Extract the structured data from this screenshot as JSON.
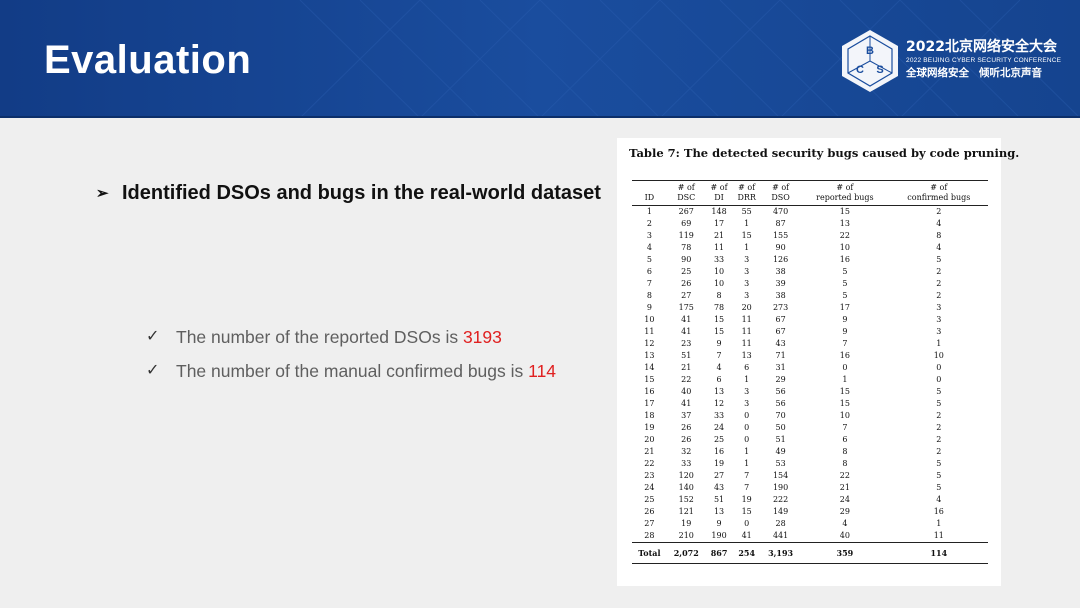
{
  "header": {
    "title": "Evaluation",
    "conference": {
      "name_cn": "2022北京网络安全大会",
      "name_en": "2022 BEIJING CYBER SECURITY CONFERENCE",
      "slogan_left": "全球网络安全",
      "slogan_right": "倾听北京声音",
      "logo_letters": [
        "B",
        "C",
        "S"
      ]
    },
    "colors": {
      "banner": "#1a4d9e",
      "highlight": "#e02020"
    }
  },
  "main": {
    "bullet": "Identified DSOs and bugs in the real-world dataset",
    "points": [
      {
        "text": "The number of the reported DSOs is ",
        "value": "3193"
      },
      {
        "text": "The number of the manual confirmed bugs is ",
        "value": "114"
      }
    ]
  },
  "table": {
    "caption": "Table 7: The detected security bugs caused by code pruning.",
    "columns": [
      [
        "ID"
      ],
      [
        "# of",
        "DSC"
      ],
      [
        "# of",
        "DI"
      ],
      [
        "# of",
        "DRR"
      ],
      [
        "# of",
        "DSO"
      ],
      [
        "# of",
        "reported bugs"
      ],
      [
        "# of",
        "confirmed bugs"
      ]
    ],
    "rows": [
      [
        "1",
        "267",
        "148",
        "55",
        "470",
        "15",
        "2"
      ],
      [
        "2",
        "69",
        "17",
        "1",
        "87",
        "13",
        "4"
      ],
      [
        "3",
        "119",
        "21",
        "15",
        "155",
        "22",
        "8"
      ],
      [
        "4",
        "78",
        "11",
        "1",
        "90",
        "10",
        "4"
      ],
      [
        "5",
        "90",
        "33",
        "3",
        "126",
        "16",
        "5"
      ],
      [
        "6",
        "25",
        "10",
        "3",
        "38",
        "5",
        "2"
      ],
      [
        "7",
        "26",
        "10",
        "3",
        "39",
        "5",
        "2"
      ],
      [
        "8",
        "27",
        "8",
        "3",
        "38",
        "5",
        "2"
      ],
      [
        "9",
        "175",
        "78",
        "20",
        "273",
        "17",
        "3"
      ],
      [
        "10",
        "41",
        "15",
        "11",
        "67",
        "9",
        "3"
      ],
      [
        "11",
        "41",
        "15",
        "11",
        "67",
        "9",
        "3"
      ],
      [
        "12",
        "23",
        "9",
        "11",
        "43",
        "7",
        "1"
      ],
      [
        "13",
        "51",
        "7",
        "13",
        "71",
        "16",
        "10"
      ],
      [
        "14",
        "21",
        "4",
        "6",
        "31",
        "0",
        "0"
      ],
      [
        "15",
        "22",
        "6",
        "1",
        "29",
        "1",
        "0"
      ],
      [
        "16",
        "40",
        "13",
        "3",
        "56",
        "15",
        "5"
      ],
      [
        "17",
        "41",
        "12",
        "3",
        "56",
        "15",
        "5"
      ],
      [
        "18",
        "37",
        "33",
        "0",
        "70",
        "10",
        "2"
      ],
      [
        "19",
        "26",
        "24",
        "0",
        "50",
        "7",
        "2"
      ],
      [
        "20",
        "26",
        "25",
        "0",
        "51",
        "6",
        "2"
      ],
      [
        "21",
        "32",
        "16",
        "1",
        "49",
        "8",
        "2"
      ],
      [
        "22",
        "33",
        "19",
        "1",
        "53",
        "8",
        "5"
      ],
      [
        "23",
        "120",
        "27",
        "7",
        "154",
        "22",
        "5"
      ],
      [
        "24",
        "140",
        "43",
        "7",
        "190",
        "21",
        "5"
      ],
      [
        "25",
        "152",
        "51",
        "19",
        "222",
        "24",
        "4"
      ],
      [
        "26",
        "121",
        "13",
        "15",
        "149",
        "29",
        "16"
      ],
      [
        "27",
        "19",
        "9",
        "0",
        "28",
        "4",
        "1"
      ],
      [
        "28",
        "210",
        "190",
        "41",
        "441",
        "40",
        "11"
      ]
    ],
    "total": [
      "Total",
      "2,072",
      "867",
      "254",
      "3,193",
      "359",
      "114"
    ]
  }
}
